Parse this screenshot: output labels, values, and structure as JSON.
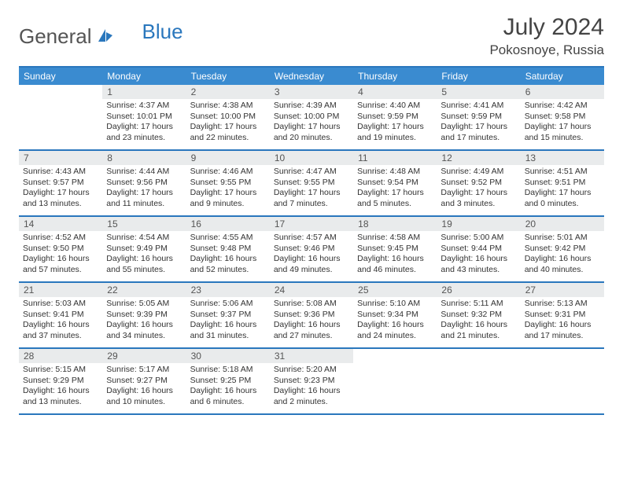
{
  "logo": {
    "text1": "General",
    "text2": "Blue"
  },
  "title": "July 2024",
  "location": "Pokosnoye, Russia",
  "dow": [
    "Sunday",
    "Monday",
    "Tuesday",
    "Wednesday",
    "Thursday",
    "Friday",
    "Saturday"
  ],
  "colors": {
    "header_bar": "#3a8bd0",
    "rule": "#2a77bd",
    "daynum_bg": "#e9ebec",
    "logo_gray": "#555555",
    "logo_blue": "#2a77bd",
    "text": "#333333",
    "bg": "#ffffff"
  },
  "layout": {
    "cols": 7,
    "rows": 5,
    "first_blank": 1,
    "last_blank": 3
  },
  "days": [
    {
      "n": "1",
      "sr": "Sunrise: 4:37 AM",
      "ss": "Sunset: 10:01 PM",
      "dl1": "Daylight: 17 hours",
      "dl2": "and 23 minutes."
    },
    {
      "n": "2",
      "sr": "Sunrise: 4:38 AM",
      "ss": "Sunset: 10:00 PM",
      "dl1": "Daylight: 17 hours",
      "dl2": "and 22 minutes."
    },
    {
      "n": "3",
      "sr": "Sunrise: 4:39 AM",
      "ss": "Sunset: 10:00 PM",
      "dl1": "Daylight: 17 hours",
      "dl2": "and 20 minutes."
    },
    {
      "n": "4",
      "sr": "Sunrise: 4:40 AM",
      "ss": "Sunset: 9:59 PM",
      "dl1": "Daylight: 17 hours",
      "dl2": "and 19 minutes."
    },
    {
      "n": "5",
      "sr": "Sunrise: 4:41 AM",
      "ss": "Sunset: 9:59 PM",
      "dl1": "Daylight: 17 hours",
      "dl2": "and 17 minutes."
    },
    {
      "n": "6",
      "sr": "Sunrise: 4:42 AM",
      "ss": "Sunset: 9:58 PM",
      "dl1": "Daylight: 17 hours",
      "dl2": "and 15 minutes."
    },
    {
      "n": "7",
      "sr": "Sunrise: 4:43 AM",
      "ss": "Sunset: 9:57 PM",
      "dl1": "Daylight: 17 hours",
      "dl2": "and 13 minutes."
    },
    {
      "n": "8",
      "sr": "Sunrise: 4:44 AM",
      "ss": "Sunset: 9:56 PM",
      "dl1": "Daylight: 17 hours",
      "dl2": "and 11 minutes."
    },
    {
      "n": "9",
      "sr": "Sunrise: 4:46 AM",
      "ss": "Sunset: 9:55 PM",
      "dl1": "Daylight: 17 hours",
      "dl2": "and 9 minutes."
    },
    {
      "n": "10",
      "sr": "Sunrise: 4:47 AM",
      "ss": "Sunset: 9:55 PM",
      "dl1": "Daylight: 17 hours",
      "dl2": "and 7 minutes."
    },
    {
      "n": "11",
      "sr": "Sunrise: 4:48 AM",
      "ss": "Sunset: 9:54 PM",
      "dl1": "Daylight: 17 hours",
      "dl2": "and 5 minutes."
    },
    {
      "n": "12",
      "sr": "Sunrise: 4:49 AM",
      "ss": "Sunset: 9:52 PM",
      "dl1": "Daylight: 17 hours",
      "dl2": "and 3 minutes."
    },
    {
      "n": "13",
      "sr": "Sunrise: 4:51 AM",
      "ss": "Sunset: 9:51 PM",
      "dl1": "Daylight: 17 hours",
      "dl2": "and 0 minutes."
    },
    {
      "n": "14",
      "sr": "Sunrise: 4:52 AM",
      "ss": "Sunset: 9:50 PM",
      "dl1": "Daylight: 16 hours",
      "dl2": "and 57 minutes."
    },
    {
      "n": "15",
      "sr": "Sunrise: 4:54 AM",
      "ss": "Sunset: 9:49 PM",
      "dl1": "Daylight: 16 hours",
      "dl2": "and 55 minutes."
    },
    {
      "n": "16",
      "sr": "Sunrise: 4:55 AM",
      "ss": "Sunset: 9:48 PM",
      "dl1": "Daylight: 16 hours",
      "dl2": "and 52 minutes."
    },
    {
      "n": "17",
      "sr": "Sunrise: 4:57 AM",
      "ss": "Sunset: 9:46 PM",
      "dl1": "Daylight: 16 hours",
      "dl2": "and 49 minutes."
    },
    {
      "n": "18",
      "sr": "Sunrise: 4:58 AM",
      "ss": "Sunset: 9:45 PM",
      "dl1": "Daylight: 16 hours",
      "dl2": "and 46 minutes."
    },
    {
      "n": "19",
      "sr": "Sunrise: 5:00 AM",
      "ss": "Sunset: 9:44 PM",
      "dl1": "Daylight: 16 hours",
      "dl2": "and 43 minutes."
    },
    {
      "n": "20",
      "sr": "Sunrise: 5:01 AM",
      "ss": "Sunset: 9:42 PM",
      "dl1": "Daylight: 16 hours",
      "dl2": "and 40 minutes."
    },
    {
      "n": "21",
      "sr": "Sunrise: 5:03 AM",
      "ss": "Sunset: 9:41 PM",
      "dl1": "Daylight: 16 hours",
      "dl2": "and 37 minutes."
    },
    {
      "n": "22",
      "sr": "Sunrise: 5:05 AM",
      "ss": "Sunset: 9:39 PM",
      "dl1": "Daylight: 16 hours",
      "dl2": "and 34 minutes."
    },
    {
      "n": "23",
      "sr": "Sunrise: 5:06 AM",
      "ss": "Sunset: 9:37 PM",
      "dl1": "Daylight: 16 hours",
      "dl2": "and 31 minutes."
    },
    {
      "n": "24",
      "sr": "Sunrise: 5:08 AM",
      "ss": "Sunset: 9:36 PM",
      "dl1": "Daylight: 16 hours",
      "dl2": "and 27 minutes."
    },
    {
      "n": "25",
      "sr": "Sunrise: 5:10 AM",
      "ss": "Sunset: 9:34 PM",
      "dl1": "Daylight: 16 hours",
      "dl2": "and 24 minutes."
    },
    {
      "n": "26",
      "sr": "Sunrise: 5:11 AM",
      "ss": "Sunset: 9:32 PM",
      "dl1": "Daylight: 16 hours",
      "dl2": "and 21 minutes."
    },
    {
      "n": "27",
      "sr": "Sunrise: 5:13 AM",
      "ss": "Sunset: 9:31 PM",
      "dl1": "Daylight: 16 hours",
      "dl2": "and 17 minutes."
    },
    {
      "n": "28",
      "sr": "Sunrise: 5:15 AM",
      "ss": "Sunset: 9:29 PM",
      "dl1": "Daylight: 16 hours",
      "dl2": "and 13 minutes."
    },
    {
      "n": "29",
      "sr": "Sunrise: 5:17 AM",
      "ss": "Sunset: 9:27 PM",
      "dl1": "Daylight: 16 hours",
      "dl2": "and 10 minutes."
    },
    {
      "n": "30",
      "sr": "Sunrise: 5:18 AM",
      "ss": "Sunset: 9:25 PM",
      "dl1": "Daylight: 16 hours",
      "dl2": "and 6 minutes."
    },
    {
      "n": "31",
      "sr": "Sunrise: 5:20 AM",
      "ss": "Sunset: 9:23 PM",
      "dl1": "Daylight: 16 hours",
      "dl2": "and 2 minutes."
    }
  ]
}
